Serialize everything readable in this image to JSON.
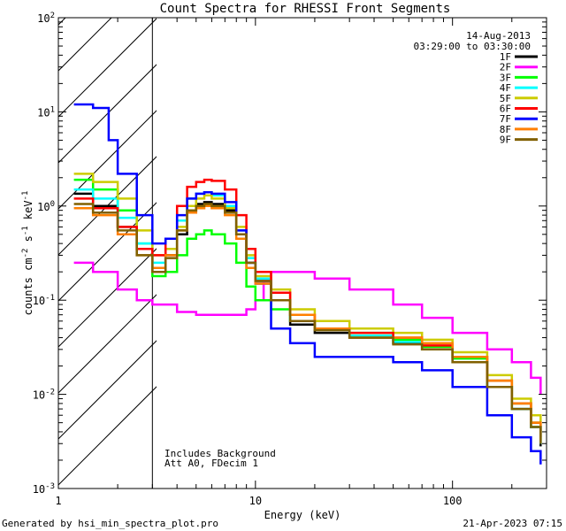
{
  "chart_data": {
    "type": "line",
    "title": "Count Spectra for RHESSI Front Segments",
    "xlabel": "Energy (keV)",
    "ylabel_parts": {
      "main": "counts cm",
      "exp1": "-2",
      "s": " s",
      "exp2": "-1",
      "kev": " keV",
      "exp3": "-1"
    },
    "xscale": "log",
    "yscale": "log",
    "xlim": [
      1,
      300
    ],
    "ylim": [
      0.001,
      100
    ],
    "x_tick_labels": [
      {
        "value": 1,
        "label": "1"
      },
      {
        "value": 10,
        "label": "10"
      },
      {
        "value": 100,
        "label": "100"
      }
    ],
    "y_tick_labels": [
      {
        "value": 100,
        "base": "10",
        "exp": "2"
      },
      {
        "value": 10,
        "base": "10",
        "exp": "1"
      },
      {
        "value": 1,
        "base": "10",
        "exp": "0"
      },
      {
        "value": 0.1,
        "base": "10",
        "exp": "-1"
      },
      {
        "value": 0.01,
        "base": "10",
        "exp": "-2"
      },
      {
        "value": 0.001,
        "base": "10",
        "exp": "-3"
      }
    ],
    "date": "14-Aug-2013",
    "time_range": "03:29:00 to 03:30:00",
    "shaded_region": {
      "xmax": 3,
      "label": "hatched excluded region below 3 keV"
    },
    "annotations": [
      "Includes Background",
      "Att A0, FDecim 1"
    ],
    "series": [
      {
        "name": "1F",
        "color": "#000000",
        "x": [
          1.2,
          1.5,
          2,
          2.5,
          3,
          3.5,
          4,
          4.5,
          5,
          5.5,
          6,
          7,
          8,
          9,
          10,
          12,
          15,
          20,
          30,
          50,
          70,
          100,
          150,
          200,
          250,
          280
        ],
        "values": [
          1.35,
          1.0,
          0.6,
          0.35,
          0.2,
          0.3,
          0.5,
          0.9,
          1.05,
          1.1,
          1.05,
          0.9,
          0.5,
          0.25,
          0.16,
          0.1,
          0.055,
          0.045,
          0.04,
          0.035,
          0.03,
          0.022,
          0.012,
          0.007,
          0.0045,
          0.0028
        ]
      },
      {
        "name": "2F",
        "color": "#ff00ff",
        "x": [
          1.2,
          1.5,
          2,
          2.5,
          3,
          4,
          5,
          7,
          9,
          10,
          11,
          12,
          15,
          20,
          30,
          50,
          70,
          100,
          150,
          200,
          250,
          280
        ],
        "values": [
          0.25,
          0.2,
          0.13,
          0.1,
          0.09,
          0.075,
          0.07,
          0.07,
          0.08,
          0.1,
          0.16,
          0.2,
          0.2,
          0.17,
          0.13,
          0.09,
          0.065,
          0.045,
          0.03,
          0.022,
          0.015,
          0.01
        ]
      },
      {
        "name": "3F",
        "color": "#00ff00",
        "x": [
          1.2,
          1.5,
          2,
          2.5,
          3,
          3.5,
          4,
          4.5,
          5,
          5.5,
          6,
          7,
          8,
          9,
          10,
          12,
          15,
          20,
          30,
          50,
          70,
          100,
          150,
          200,
          250,
          280
        ],
        "values": [
          1.9,
          1.5,
          0.9,
          0.4,
          0.18,
          0.2,
          0.3,
          0.45,
          0.5,
          0.55,
          0.5,
          0.4,
          0.25,
          0.14,
          0.1,
          0.08,
          0.06,
          0.05,
          0.045,
          0.038,
          0.032,
          0.024,
          0.014,
          0.008,
          0.005,
          0.003
        ]
      },
      {
        "name": "4F",
        "color": "#00ffff",
        "x": [
          1.2,
          1.5,
          2,
          2.5,
          3,
          3.5,
          4,
          4.5,
          5,
          5.5,
          6,
          7,
          8,
          9,
          10,
          12,
          15,
          20,
          30,
          50,
          70,
          100,
          150,
          200,
          250,
          280
        ],
        "values": [
          1.5,
          1.2,
          0.75,
          0.4,
          0.25,
          0.35,
          0.7,
          1.2,
          1.35,
          1.4,
          1.3,
          1.0,
          0.55,
          0.28,
          0.17,
          0.1,
          0.06,
          0.05,
          0.042,
          0.036,
          0.03,
          0.022,
          0.012,
          0.007,
          0.0045,
          0.003
        ]
      },
      {
        "name": "5F",
        "color": "#cccc00",
        "x": [
          1.2,
          1.5,
          2,
          2.5,
          3,
          3.5,
          4,
          4.5,
          5,
          5.5,
          6,
          7,
          8,
          9,
          10,
          12,
          15,
          20,
          30,
          50,
          70,
          100,
          150,
          200,
          250,
          280
        ],
        "values": [
          2.2,
          1.8,
          1.2,
          0.55,
          0.3,
          0.35,
          0.6,
          1.0,
          1.2,
          1.3,
          1.2,
          0.95,
          0.6,
          0.3,
          0.18,
          0.13,
          0.08,
          0.06,
          0.05,
          0.045,
          0.038,
          0.028,
          0.016,
          0.009,
          0.006,
          0.004
        ]
      },
      {
        "name": "6F",
        "color": "#ff0000",
        "x": [
          1.2,
          1.5,
          2,
          2.5,
          3,
          3.5,
          4,
          4.5,
          5,
          5.5,
          6,
          7,
          8,
          9,
          10,
          12,
          15,
          20,
          30,
          50,
          70,
          100,
          150,
          200,
          250,
          280
        ],
        "values": [
          1.2,
          0.95,
          0.6,
          0.35,
          0.3,
          0.45,
          1.0,
          1.6,
          1.8,
          1.9,
          1.85,
          1.5,
          0.8,
          0.35,
          0.2,
          0.12,
          0.07,
          0.05,
          0.045,
          0.04,
          0.033,
          0.025,
          0.014,
          0.008,
          0.005,
          0.0035
        ]
      },
      {
        "name": "7F",
        "color": "#0000ff",
        "x": [
          1.2,
          1.5,
          1.8,
          2,
          2.5,
          3,
          3.5,
          4,
          4.5,
          5,
          5.5,
          6,
          7,
          8,
          9,
          10,
          12,
          15,
          20,
          30,
          50,
          70,
          100,
          150,
          200,
          250,
          280
        ],
        "values": [
          12,
          11,
          5,
          2.2,
          0.8,
          0.4,
          0.45,
          0.8,
          1.2,
          1.35,
          1.4,
          1.35,
          1.1,
          0.55,
          0.25,
          0.15,
          0.05,
          0.035,
          0.025,
          0.025,
          0.022,
          0.018,
          0.012,
          0.006,
          0.0035,
          0.0025,
          0.0018
        ]
      },
      {
        "name": "8F",
        "color": "#ff7f00",
        "x": [
          1.2,
          1.5,
          2,
          2.5,
          3,
          3.5,
          4,
          4.5,
          5,
          5.5,
          6,
          7,
          8,
          9,
          10,
          12,
          15,
          20,
          30,
          50,
          70,
          100,
          150,
          200,
          250,
          280
        ],
        "values": [
          0.95,
          0.8,
          0.5,
          0.3,
          0.22,
          0.3,
          0.55,
          0.85,
          0.95,
          1.0,
          0.95,
          0.8,
          0.45,
          0.22,
          0.15,
          0.1,
          0.07,
          0.05,
          0.04,
          0.04,
          0.035,
          0.025,
          0.014,
          0.008,
          0.005,
          0.0032
        ]
      },
      {
        "name": "9F",
        "color": "#806000",
        "x": [
          1.2,
          1.5,
          2,
          2.5,
          3,
          3.5,
          4,
          4.5,
          5,
          5.5,
          6,
          7,
          8,
          9,
          10,
          12,
          15,
          20,
          30,
          50,
          70,
          100,
          150,
          200,
          250,
          280
        ],
        "values": [
          1.05,
          0.85,
          0.55,
          0.3,
          0.2,
          0.28,
          0.55,
          0.9,
          1.0,
          1.05,
          1.0,
          0.85,
          0.5,
          0.25,
          0.16,
          0.1,
          0.06,
          0.048,
          0.04,
          0.034,
          0.03,
          0.022,
          0.012,
          0.007,
          0.0045,
          0.003
        ]
      }
    ]
  },
  "footer": {
    "generated_by": "Generated by hsi_min_spectra_plot.pro",
    "timestamp": "21-Apr-2023 07:15"
  }
}
